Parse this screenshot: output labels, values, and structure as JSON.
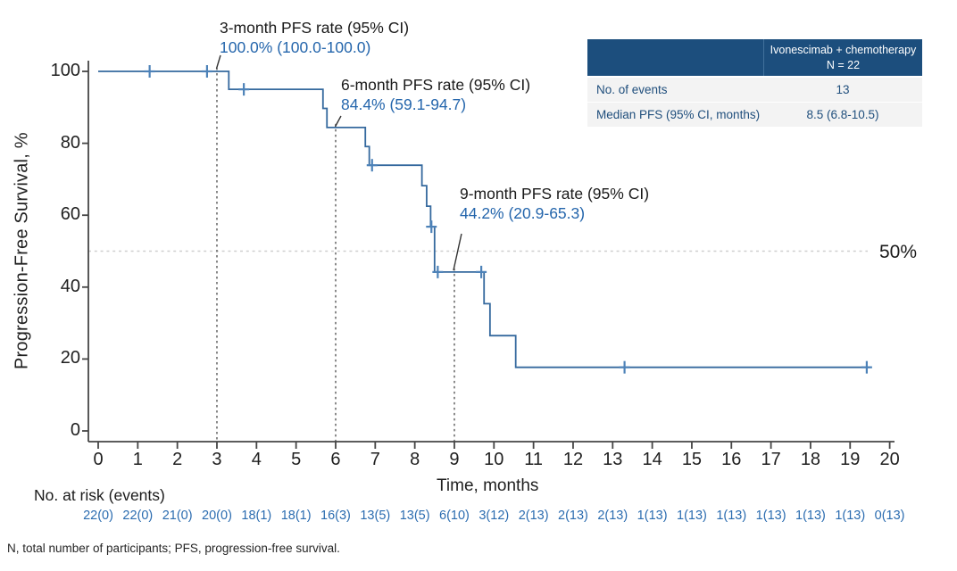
{
  "chart_data": {
    "type": "km_step",
    "ylabel": "Progression-Free Survival, %",
    "xlabel": "Time, months",
    "xlim": [
      0,
      20
    ],
    "ylim": [
      0,
      100
    ],
    "x_ticks": [
      0,
      1,
      2,
      3,
      4,
      5,
      6,
      7,
      8,
      9,
      10,
      11,
      12,
      13,
      14,
      15,
      16,
      17,
      18,
      19,
      20
    ],
    "y_ticks": [
      0,
      20,
      40,
      60,
      80,
      100
    ],
    "grid": false,
    "series": [
      {
        "name": "Ivonescimab + chemotherapy",
        "color": "#35699e",
        "censor_color": "#4d82b8",
        "start": {
          "t": 0,
          "s": 100
        },
        "steps": [
          {
            "t": 3.3,
            "s": 95.0
          },
          {
            "t": 5.68,
            "s": 89.7
          },
          {
            "t": 5.78,
            "s": 84.4
          },
          {
            "t": 6.75,
            "s": 79.1
          },
          {
            "t": 6.85,
            "s": 73.9
          },
          {
            "t": 8.18,
            "s": 68.2
          },
          {
            "t": 8.3,
            "s": 62.5
          },
          {
            "t": 8.4,
            "s": 56.8
          },
          {
            "t": 8.5,
            "s": 44.2
          },
          {
            "t": 9.75,
            "s": 35.4
          },
          {
            "t": 9.9,
            "s": 26.5
          },
          {
            "t": 10.55,
            "s": 17.7
          }
        ],
        "end_t": 19.5,
        "censors": [
          {
            "t": 1.3,
            "s": 100
          },
          {
            "t": 2.75,
            "s": 100
          },
          {
            "t": 3.68,
            "s": 95.0
          },
          {
            "t": 6.92,
            "s": 73.9
          },
          {
            "t": 8.42,
            "s": 56.8
          },
          {
            "t": 8.58,
            "s": 44.2
          },
          {
            "t": 9.68,
            "s": 44.2
          },
          {
            "t": 13.3,
            "s": 17.7
          },
          {
            "t": 19.42,
            "s": 17.7
          }
        ]
      }
    ],
    "reference_line": {
      "y": 50,
      "label": "50%"
    },
    "milestones": [
      {
        "t": 3,
        "s": 100,
        "title": "3-month PFS rate (95% CI)",
        "value": "100.0% (100.0-100.0)"
      },
      {
        "t": 6,
        "s": 84.4,
        "title": "6-month PFS rate (95% CI)",
        "value": "84.4% (59.1-94.7)"
      },
      {
        "t": 9,
        "s": 44.2,
        "title": "9-month PFS rate (95% CI)",
        "value": "44.2% (20.9-65.3)"
      }
    ]
  },
  "risk_table": {
    "label": "No. at risk (events)",
    "values": [
      "22(0)",
      "22(0)",
      "21(0)",
      "20(0)",
      "18(1)",
      "18(1)",
      "16(3)",
      "13(5)",
      "13(5)",
      "6(10)",
      "3(12)",
      "2(13)",
      "2(13)",
      "2(13)",
      "1(13)",
      "1(13)",
      "1(13)",
      "1(13)",
      "1(13)",
      "1(13)",
      "0(13)"
    ]
  },
  "summary_table": {
    "header_col2_line1": "Ivonescimab + chemotherapy",
    "header_col2_line2": "N = 22",
    "rows": [
      {
        "label": "No. of events",
        "value": "13"
      },
      {
        "label": "Median PFS (95% CI, months)",
        "value": "8.5 (6.8-10.5)"
      }
    ]
  },
  "footnote": "N, total number of participants; PFS, progression-free survival.",
  "colors": {
    "curve": "#35699e",
    "censor": "#4d82b8",
    "annotation_value": "#2566ac",
    "risk_values": "#2b6cb0",
    "table_header_bg": "#1c4e7d",
    "table_row_bg": "#f3f3f3",
    "table_row_text": "#1f4e7c",
    "axis": "#454545",
    "milestone_guide": "#6e6e6e",
    "reference_line": "#cfcfcf"
  }
}
